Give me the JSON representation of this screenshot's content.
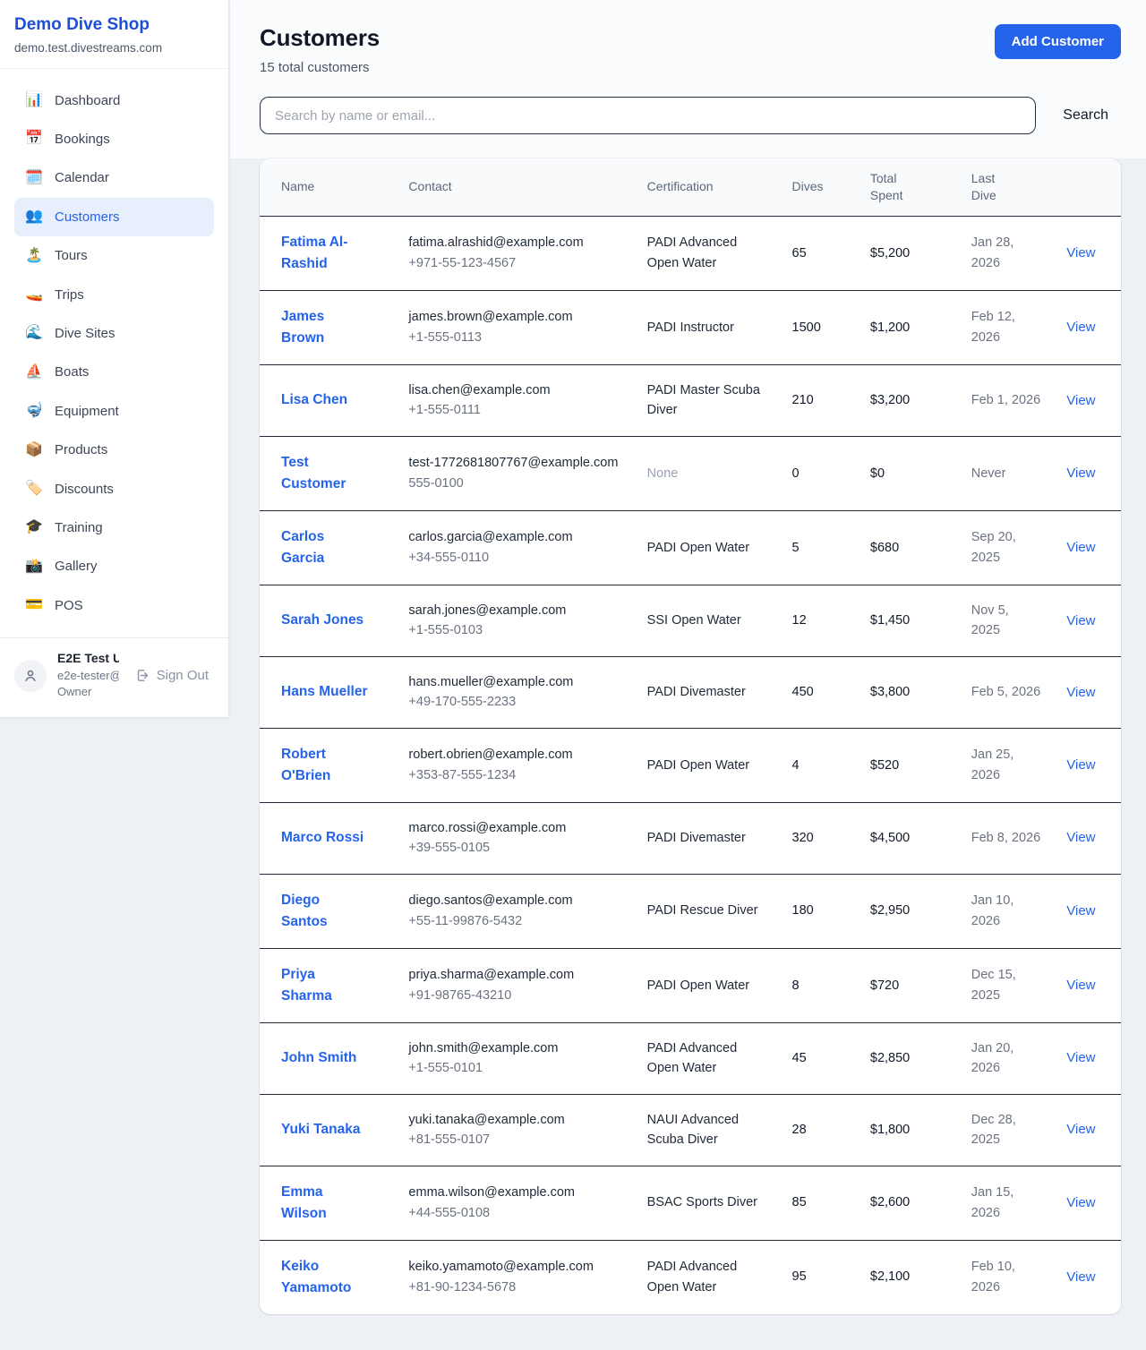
{
  "sidebar": {
    "brand": {
      "title": "Demo Dive Shop",
      "domain": "demo.test.divestreams.com"
    },
    "items": [
      {
        "icon": "📊",
        "label": "Dashboard",
        "active": false
      },
      {
        "icon": "📅",
        "label": "Bookings",
        "active": false
      },
      {
        "icon": "🗓️",
        "label": "Calendar",
        "active": false
      },
      {
        "icon": "👥",
        "label": "Customers",
        "active": true
      },
      {
        "icon": "🏝️",
        "label": "Tours",
        "active": false
      },
      {
        "icon": "🚤",
        "label": "Trips",
        "active": false
      },
      {
        "icon": "🌊",
        "label": "Dive Sites",
        "active": false
      },
      {
        "icon": "⛵",
        "label": "Boats",
        "active": false
      },
      {
        "icon": "🤿",
        "label": "Equipment",
        "active": false
      },
      {
        "icon": "📦",
        "label": "Products",
        "active": false
      },
      {
        "icon": "🏷️",
        "label": "Discounts",
        "active": false
      },
      {
        "icon": "🎓",
        "label": "Training",
        "active": false
      },
      {
        "icon": "📸",
        "label": "Gallery",
        "active": false
      },
      {
        "icon": "💳",
        "label": "POS",
        "active": false
      }
    ],
    "user": {
      "name": "E2E Test U...",
      "email": "e2e-tester@...",
      "role": "Owner",
      "sign_out_label": "Sign Out"
    }
  },
  "header": {
    "title": "Customers",
    "subtitle": "15 total customers",
    "add_button_label": "Add Customer"
  },
  "search": {
    "placeholder": "Search by name or email...",
    "button_label": "Search"
  },
  "table": {
    "columns": [
      "Name",
      "Contact",
      "Certification",
      "Dives",
      "Total Spent",
      "Last Dive",
      ""
    ],
    "view_label": "View",
    "rows": [
      {
        "name": "Fatima Al-Rashid",
        "email": "fatima.alrashid@example.com",
        "phone": "+971-55-123-4567",
        "certification": "PADI Advanced Open Water",
        "dives": "65",
        "total_spent": "$5,200",
        "last_dive": "Jan 28, 2026"
      },
      {
        "name": "James Brown",
        "email": "james.brown@example.com",
        "phone": "+1-555-0113",
        "certification": "PADI Instructor",
        "dives": "1500",
        "total_spent": "$1,200",
        "last_dive": "Feb 12, 2026"
      },
      {
        "name": "Lisa Chen",
        "email": "lisa.chen@example.com",
        "phone": "+1-555-0111",
        "certification": "PADI Master Scuba Diver",
        "dives": "210",
        "total_spent": "$3,200",
        "last_dive": "Feb 1, 2026"
      },
      {
        "name": "Test Customer",
        "email": "test-1772681807767@example.com",
        "phone": "555-0100",
        "certification": "None",
        "dives": "0",
        "total_spent": "$0",
        "last_dive": "Never"
      },
      {
        "name": "Carlos Garcia",
        "email": "carlos.garcia@example.com",
        "phone": "+34-555-0110",
        "certification": "PADI Open Water",
        "dives": "5",
        "total_spent": "$680",
        "last_dive": "Sep 20, 2025"
      },
      {
        "name": "Sarah Jones",
        "email": "sarah.jones@example.com",
        "phone": "+1-555-0103",
        "certification": "SSI Open Water",
        "dives": "12",
        "total_spent": "$1,450",
        "last_dive": "Nov 5, 2025"
      },
      {
        "name": "Hans Mueller",
        "email": "hans.mueller@example.com",
        "phone": "+49-170-555-2233",
        "certification": "PADI Divemaster",
        "dives": "450",
        "total_spent": "$3,800",
        "last_dive": "Feb 5, 2026"
      },
      {
        "name": "Robert O'Brien",
        "email": "robert.obrien@example.com",
        "phone": "+353-87-555-1234",
        "certification": "PADI Open Water",
        "dives": "4",
        "total_spent": "$520",
        "last_dive": "Jan 25, 2026"
      },
      {
        "name": "Marco Rossi",
        "email": "marco.rossi@example.com",
        "phone": "+39-555-0105",
        "certification": "PADI Divemaster",
        "dives": "320",
        "total_spent": "$4,500",
        "last_dive": "Feb 8, 2026"
      },
      {
        "name": "Diego Santos",
        "email": "diego.santos@example.com",
        "phone": "+55-11-99876-5432",
        "certification": "PADI Rescue Diver",
        "dives": "180",
        "total_spent": "$2,950",
        "last_dive": "Jan 10, 2026"
      },
      {
        "name": "Priya Sharma",
        "email": "priya.sharma@example.com",
        "phone": "+91-98765-43210",
        "certification": "PADI Open Water",
        "dives": "8",
        "total_spent": "$720",
        "last_dive": "Dec 15, 2025"
      },
      {
        "name": "John Smith",
        "email": "john.smith@example.com",
        "phone": "+1-555-0101",
        "certification": "PADI Advanced Open Water",
        "dives": "45",
        "total_spent": "$2,850",
        "last_dive": "Jan 20, 2026"
      },
      {
        "name": "Yuki Tanaka",
        "email": "yuki.tanaka@example.com",
        "phone": "+81-555-0107",
        "certification": "NAUI Advanced Scuba Diver",
        "dives": "28",
        "total_spent": "$1,800",
        "last_dive": "Dec 28, 2025"
      },
      {
        "name": "Emma Wilson",
        "email": "emma.wilson@example.com",
        "phone": "+44-555-0108",
        "certification": "BSAC Sports Diver",
        "dives": "85",
        "total_spent": "$2,600",
        "last_dive": "Jan 15, 2026"
      },
      {
        "name": "Keiko Yamamoto",
        "email": "keiko.yamamoto@example.com",
        "phone": "+81-90-1234-5678",
        "certification": "PADI Advanced Open Water",
        "dives": "95",
        "total_spent": "$2,100",
        "last_dive": "Feb 10, 2026"
      }
    ]
  },
  "colors": {
    "accent": "#2563eb",
    "brand_title": "#1d4ed8",
    "active_item_bg": "#e7eefc",
    "table_header_bg": "#f8fafc",
    "row_divider": "#222b38",
    "page_bg": "#edf0f5",
    "muted_text": "#6b7280"
  }
}
